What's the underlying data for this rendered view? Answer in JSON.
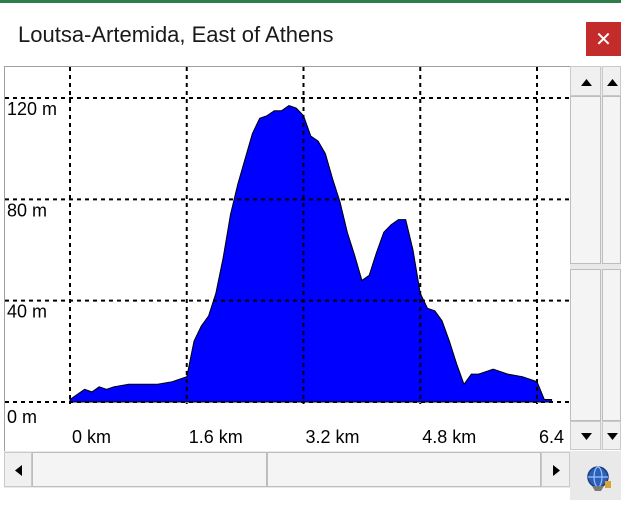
{
  "window": {
    "title": "Loutsa-Artemida, East of Athens"
  },
  "icons": {
    "close": "close-icon",
    "scroll_up": "arrow-up-icon",
    "scroll_down": "arrow-down-icon",
    "scroll_left": "arrow-left-icon",
    "scroll_right": "arrow-right-icon",
    "corner": "globe-icon"
  },
  "colors": {
    "fill": "#0000ff",
    "grid": "#000000",
    "close_button": "#c42b2b"
  },
  "chart_data": {
    "type": "area",
    "title": "",
    "xlabel": "",
    "ylabel": "",
    "x_unit": "km",
    "y_unit": "m",
    "xlim": [
      0,
      6.4
    ],
    "ylim": [
      0,
      120
    ],
    "x_ticks": [
      "0 km",
      "1.6 km",
      "3.2 km",
      "4.8 km",
      "6.4 km"
    ],
    "y_ticks": [
      "0 m",
      "40 m",
      "80 m",
      "120 m"
    ],
    "grid": true,
    "series": [
      {
        "x": [
          0,
          0.1,
          0.2,
          0.3,
          0.4,
          0.5,
          0.6,
          0.8,
          1.0,
          1.2,
          1.4,
          1.5,
          1.6,
          1.7,
          1.8,
          1.9,
          2.0,
          2.1,
          2.2,
          2.3,
          2.4,
          2.5,
          2.6,
          2.7,
          2.8,
          2.9,
          3.0,
          3.1,
          3.2,
          3.3,
          3.4,
          3.5,
          3.6,
          3.7,
          3.8,
          3.9,
          4.0,
          4.1,
          4.2,
          4.3,
          4.4,
          4.5,
          4.6,
          4.7,
          4.8,
          4.9,
          5.0,
          5.1,
          5.2,
          5.3,
          5.4,
          5.5,
          5.6,
          5.8,
          6.0,
          6.2,
          6.4,
          6.5,
          6.6
        ],
        "values": [
          1,
          3,
          5,
          4,
          6,
          5,
          6,
          7,
          7,
          7,
          8,
          9,
          10,
          24,
          30,
          34,
          43,
          57,
          74,
          86,
          96,
          106,
          112,
          113,
          115,
          115,
          117,
          116,
          113,
          105,
          103,
          98,
          88,
          79,
          67,
          58,
          48,
          50,
          59,
          67,
          70,
          72,
          72,
          60,
          43,
          37,
          36,
          32,
          24,
          15,
          7,
          11,
          11,
          13,
          11,
          10,
          8,
          1,
          1
        ]
      }
    ]
  }
}
